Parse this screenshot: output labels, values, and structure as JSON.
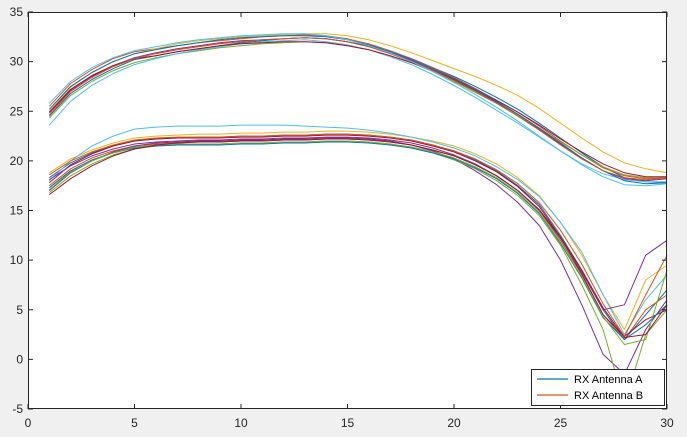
{
  "chart_data": {
    "type": "line",
    "title": "",
    "xlabel": "",
    "ylabel": "",
    "xlim": [
      0,
      30
    ],
    "ylim": [
      -5,
      35
    ],
    "xticks": [
      0,
      5,
      10,
      15,
      20,
      25,
      30
    ],
    "yticks": [
      -5,
      0,
      5,
      10,
      15,
      20,
      25,
      30,
      35
    ],
    "grid": false,
    "legend": {
      "placement": "bottom-right",
      "entries": [
        {
          "label": "RX Antenna A",
          "color": "#0072BD"
        },
        {
          "label": "RX Antenna B",
          "color": "#D95319"
        }
      ]
    },
    "palette": [
      "#0072BD",
      "#D95319",
      "#EDB120",
      "#7E2F8E",
      "#77AC30",
      "#4DBEEE",
      "#A2142F"
    ],
    "x": [
      1,
      2,
      3,
      4,
      5,
      6,
      7,
      8,
      9,
      10,
      11,
      12,
      13,
      14,
      15,
      16,
      17,
      18,
      19,
      20,
      21,
      22,
      23,
      24,
      25,
      26,
      27,
      28,
      29,
      30
    ],
    "series": [
      {
        "color": "#0072BD",
        "values": [
          24.5,
          26.8,
          28.2,
          29.3,
          30.2,
          30.6,
          31.0,
          31.3,
          31.6,
          31.9,
          32.1,
          32.3,
          32.4,
          32.3,
          32.0,
          31.6,
          31.0,
          30.3,
          29.4,
          28.5,
          27.5,
          26.4,
          25.2,
          23.8,
          22.3,
          20.8,
          19.4,
          18.3,
          17.9,
          17.8
        ]
      },
      {
        "color": "#D95319",
        "values": [
          25.5,
          27.8,
          29.2,
          30.3,
          31.0,
          31.3,
          31.6,
          31.9,
          32.1,
          32.3,
          32.5,
          32.6,
          32.7,
          32.6,
          32.3,
          31.8,
          31.1,
          30.3,
          29.4,
          28.4,
          27.3,
          26.1,
          24.9,
          23.5,
          22.0,
          20.6,
          19.3,
          18.5,
          18.2,
          18.3
        ]
      },
      {
        "color": "#EDB120",
        "values": [
          25.0,
          27.4,
          28.9,
          30.0,
          30.8,
          31.3,
          31.8,
          32.1,
          32.3,
          32.5,
          32.6,
          32.7,
          32.8,
          32.8,
          32.6,
          32.2,
          31.6,
          30.9,
          30.1,
          29.3,
          28.5,
          27.6,
          26.6,
          25.3,
          23.8,
          22.3,
          20.9,
          19.8,
          19.2,
          18.8
        ]
      },
      {
        "color": "#7E2F8E",
        "values": [
          24.8,
          27.1,
          28.5,
          29.6,
          30.4,
          30.9,
          31.3,
          31.6,
          31.9,
          32.1,
          32.2,
          32.3,
          32.4,
          32.3,
          32.0,
          31.5,
          30.9,
          30.1,
          29.2,
          28.2,
          27.1,
          25.9,
          24.6,
          23.2,
          21.7,
          20.3,
          19.0,
          18.2,
          18.0,
          18.2
        ]
      },
      {
        "color": "#77AC30",
        "values": [
          24.3,
          26.6,
          28.0,
          29.1,
          29.9,
          30.4,
          30.8,
          31.1,
          31.4,
          31.6,
          31.8,
          31.9,
          32.0,
          31.9,
          31.6,
          31.2,
          30.6,
          29.9,
          29.0,
          28.0,
          26.9,
          25.8,
          24.6,
          23.3,
          21.9,
          20.6,
          19.4,
          18.6,
          18.3,
          18.4
        ]
      },
      {
        "color": "#4DBEEE",
        "values": [
          23.6,
          26.0,
          27.6,
          28.8,
          29.7,
          30.3,
          30.8,
          31.2,
          31.5,
          31.8,
          32.0,
          32.1,
          32.2,
          32.0,
          31.7,
          31.2,
          30.5,
          29.7,
          28.7,
          27.6,
          26.4,
          25.1,
          23.8,
          22.4,
          21.0,
          19.7,
          18.7,
          18.1,
          17.9,
          17.9
        ]
      },
      {
        "color": "#A2142F",
        "values": [
          24.9,
          27.2,
          28.6,
          29.6,
          30.3,
          30.6,
          31.0,
          31.3,
          31.6,
          31.8,
          31.9,
          32.0,
          32.0,
          31.9,
          31.6,
          31.2,
          30.6,
          29.9,
          29.1,
          28.2,
          27.2,
          26.1,
          24.9,
          23.6,
          22.2,
          20.9,
          19.7,
          18.8,
          18.4,
          18.4
        ]
      },
      {
        "color": "#0072BD",
        "values": [
          25.2,
          27.5,
          28.9,
          30.0,
          30.8,
          31.2,
          31.6,
          31.9,
          32.2,
          32.4,
          32.5,
          32.6,
          32.6,
          32.5,
          32.2,
          31.7,
          31.0,
          30.2,
          29.3,
          28.3,
          27.2,
          26.0,
          24.7,
          23.3,
          21.8,
          20.3,
          19.0,
          18.0,
          17.7,
          17.8
        ]
      },
      {
        "color": "#D95319",
        "values": [
          24.6,
          27.0,
          28.4,
          29.5,
          30.3,
          30.8,
          31.2,
          31.5,
          31.8,
          32.0,
          32.2,
          32.3,
          32.4,
          32.3,
          32.0,
          31.5,
          30.8,
          30.0,
          29.1,
          28.1,
          27.0,
          25.8,
          24.5,
          23.1,
          21.6,
          20.2,
          19.0,
          18.3,
          18.1,
          18.3
        ]
      },
      {
        "color": "#4DBEEE",
        "values": [
          25.8,
          28.0,
          29.4,
          30.4,
          31.1,
          31.5,
          31.9,
          32.2,
          32.4,
          32.6,
          32.7,
          32.8,
          32.8,
          32.6,
          32.2,
          31.6,
          30.9,
          30.0,
          29.0,
          27.9,
          26.7,
          25.4,
          24.0,
          22.5,
          21.0,
          19.6,
          18.4,
          17.6,
          17.5,
          17.7
        ]
      },
      {
        "color": "#0072BD",
        "values": [
          18.3,
          19.8,
          20.8,
          21.5,
          22.0,
          22.2,
          22.3,
          22.4,
          22.4,
          22.5,
          22.5,
          22.6,
          22.6,
          22.7,
          22.7,
          22.6,
          22.4,
          22.1,
          21.6,
          21.0,
          20.1,
          19.0,
          17.5,
          15.6,
          12.5,
          9.0,
          5.0,
          2.0,
          4.5,
          7.0
        ]
      },
      {
        "color": "#D95319",
        "values": [
          17.5,
          19.2,
          20.3,
          21.0,
          21.5,
          21.7,
          21.8,
          21.9,
          21.9,
          22.0,
          22.0,
          22.1,
          22.1,
          22.2,
          22.2,
          22.1,
          21.9,
          21.6,
          21.1,
          20.5,
          19.6,
          18.5,
          17.0,
          15.0,
          12.0,
          8.5,
          4.5,
          2.0,
          5.0,
          6.5
        ]
      },
      {
        "color": "#EDB120",
        "values": [
          18.8,
          20.2,
          21.1,
          21.8,
          22.3,
          22.5,
          22.6,
          22.7,
          22.7,
          22.8,
          22.8,
          22.9,
          22.9,
          23.0,
          23.0,
          22.9,
          22.7,
          22.4,
          22.0,
          21.5,
          20.7,
          19.7,
          18.3,
          16.5,
          13.8,
          10.5,
          6.5,
          3.0,
          8.0,
          9.5
        ]
      },
      {
        "color": "#7E2F8E",
        "values": [
          17.0,
          18.8,
          20.0,
          20.9,
          21.5,
          21.8,
          21.9,
          22.0,
          22.0,
          22.1,
          22.1,
          22.2,
          22.2,
          22.3,
          22.3,
          22.2,
          22.0,
          21.6,
          21.0,
          20.2,
          19.0,
          17.6,
          15.8,
          13.5,
          10.0,
          5.5,
          0.5,
          -1.5,
          3.0,
          6.0
        ]
      },
      {
        "color": "#77AC30",
        "values": [
          16.8,
          18.5,
          19.7,
          20.6,
          21.2,
          21.5,
          21.6,
          21.7,
          21.7,
          21.8,
          21.8,
          21.9,
          21.9,
          22.0,
          22.0,
          21.9,
          21.7,
          21.3,
          20.8,
          20.1,
          19.2,
          18.0,
          16.5,
          14.5,
          11.5,
          7.5,
          3.0,
          -4.5,
          2.5,
          5.0
        ]
      },
      {
        "color": "#4DBEEE",
        "values": [
          18.0,
          20.0,
          21.5,
          22.5,
          23.2,
          23.4,
          23.5,
          23.5,
          23.5,
          23.6,
          23.6,
          23.6,
          23.5,
          23.4,
          23.3,
          23.1,
          22.8,
          22.4,
          21.9,
          21.3,
          20.5,
          19.4,
          18.1,
          16.4,
          13.8,
          10.8,
          6.5,
          2.5,
          6.0,
          8.5
        ]
      },
      {
        "color": "#A2142F",
        "values": [
          17.8,
          19.6,
          20.7,
          21.5,
          22.0,
          22.2,
          22.3,
          22.3,
          22.3,
          22.4,
          22.4,
          22.5,
          22.5,
          22.6,
          22.6,
          22.5,
          22.3,
          22.0,
          21.5,
          20.9,
          20.0,
          18.9,
          17.4,
          15.4,
          12.3,
          8.6,
          4.5,
          2.3,
          4.0,
          5.0
        ]
      },
      {
        "color": "#0072BD",
        "values": [
          17.3,
          19.0,
          20.1,
          20.8,
          21.3,
          21.5,
          21.6,
          21.6,
          21.6,
          21.7,
          21.7,
          21.8,
          21.8,
          21.9,
          21.9,
          21.8,
          21.6,
          21.3,
          20.8,
          20.2,
          19.3,
          18.2,
          16.7,
          14.7,
          11.7,
          8.2,
          4.2,
          2.0,
          3.5,
          5.5
        ]
      },
      {
        "color": "#D95319",
        "values": [
          18.6,
          20.0,
          20.9,
          21.6,
          22.1,
          22.3,
          22.4,
          22.4,
          22.4,
          22.5,
          22.5,
          22.6,
          22.6,
          22.7,
          22.7,
          22.6,
          22.4,
          22.1,
          21.6,
          21.0,
          20.2,
          19.1,
          17.7,
          15.8,
          13.0,
          9.6,
          5.6,
          2.3,
          6.5,
          10.5
        ]
      },
      {
        "color": "#7E2F8E",
        "values": [
          18.1,
          19.5,
          20.5,
          21.2,
          21.7,
          21.9,
          22.0,
          22.1,
          22.1,
          22.2,
          22.2,
          22.3,
          22.3,
          22.4,
          22.4,
          22.3,
          22.1,
          21.8,
          21.3,
          20.6,
          19.7,
          18.5,
          17.0,
          15.0,
          12.2,
          8.8,
          5.0,
          5.5,
          10.5,
          12.0
        ]
      },
      {
        "color": "#77AC30",
        "values": [
          17.1,
          18.9,
          20.0,
          20.8,
          21.4,
          21.6,
          21.7,
          21.7,
          21.7,
          21.8,
          21.8,
          21.9,
          21.9,
          22.0,
          22.0,
          21.9,
          21.7,
          21.4,
          20.9,
          20.3,
          19.4,
          18.3,
          16.8,
          14.8,
          11.8,
          8.3,
          4.3,
          1.5,
          2.0,
          9.0
        ]
      },
      {
        "color": "#A2142F",
        "values": [
          16.6,
          18.2,
          19.5,
          20.5,
          21.2,
          21.6,
          21.8,
          21.9,
          21.9,
          22.0,
          22.0,
          22.1,
          22.1,
          22.2,
          22.2,
          22.1,
          21.9,
          21.6,
          21.1,
          20.5,
          19.6,
          18.5,
          17.0,
          15.1,
          12.3,
          9.0,
          5.2,
          2.2,
          2.5,
          5.5
        ]
      }
    ]
  }
}
